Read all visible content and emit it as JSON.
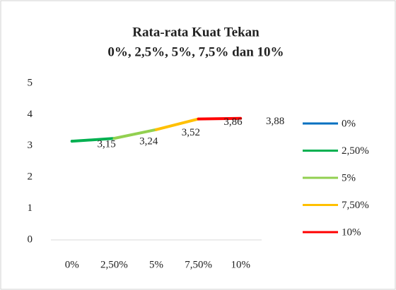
{
  "chart_data": {
    "type": "line",
    "title": [
      "Rata-rata Kuat Tekan",
      "0%, 2,5%, 5%, 7,5% dan 10%"
    ],
    "categories": [
      "0%",
      "2,50%",
      "5%",
      "7,50%",
      "10%"
    ],
    "values": [
      3.15,
      3.24,
      3.52,
      3.86,
      3.88
    ],
    "value_labels": [
      "3,15",
      "3,24",
      "3,52",
      "3,86",
      "3,88"
    ],
    "series": [
      {
        "name": "0%",
        "color": "#0070c0"
      },
      {
        "name": "2,50%",
        "color": "#00b050"
      },
      {
        "name": "5%",
        "color": "#92d050"
      },
      {
        "name": "7,50%",
        "color": "#ffc000"
      },
      {
        "name": "10%",
        "color": "#ff0000"
      }
    ],
    "ylim": [
      0,
      5
    ],
    "yticks": [
      0,
      1,
      2,
      3,
      4,
      5
    ],
    "grid": false,
    "legend": "right"
  }
}
